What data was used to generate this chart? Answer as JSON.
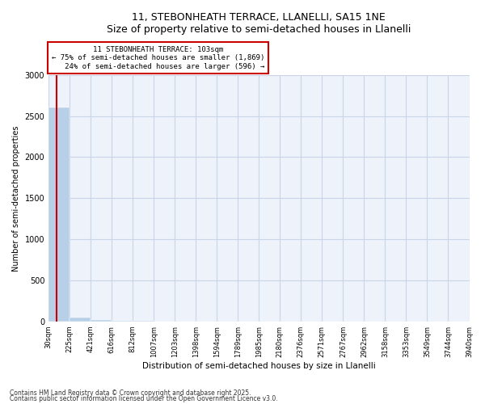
{
  "title": "11, STEBONHEATH TERRACE, LLANELLI, SA15 1NE",
  "subtitle": "Size of property relative to semi-detached houses in Llanelli",
  "xlabel": "Distribution of semi-detached houses by size in Llanelli",
  "ylabel": "Number of semi-detached properties",
  "bin_labels": [
    "30sqm",
    "225sqm",
    "421sqm",
    "616sqm",
    "812sqm",
    "1007sqm",
    "1203sqm",
    "1398sqm",
    "1594sqm",
    "1789sqm",
    "1985sqm",
    "2180sqm",
    "2376sqm",
    "2571sqm",
    "2767sqm",
    "2962sqm",
    "3158sqm",
    "3353sqm",
    "3549sqm",
    "3744sqm",
    "3940sqm"
  ],
  "bar_heights": [
    2600,
    45,
    18,
    8,
    5,
    3,
    2,
    2,
    1,
    1,
    1,
    1,
    1,
    1,
    0,
    0,
    0,
    0,
    0,
    0
  ],
  "bar_color": "#b8cfe8",
  "bar_edge_color": "#b8cfe8",
  "property_sqm": 103,
  "property_label": "11 STEBONHEATH TERRACE: 103sqm",
  "percent_smaller": 75,
  "count_smaller": 1869,
  "percent_larger": 24,
  "count_larger": 596,
  "annotation_box_color": "#cc0000",
  "vertical_line_color": "#cc0000",
  "ylim": [
    0,
    3000
  ],
  "yticks": [
    0,
    500,
    1000,
    1500,
    2000,
    2500,
    3000
  ],
  "grid_color": "#c8d4e8",
  "bg_color": "#eef2fa",
  "footer1": "Contains HM Land Registry data © Crown copyright and database right 2025.",
  "footer2": "Contains public sector information licensed under the Open Government Licence v3.0."
}
